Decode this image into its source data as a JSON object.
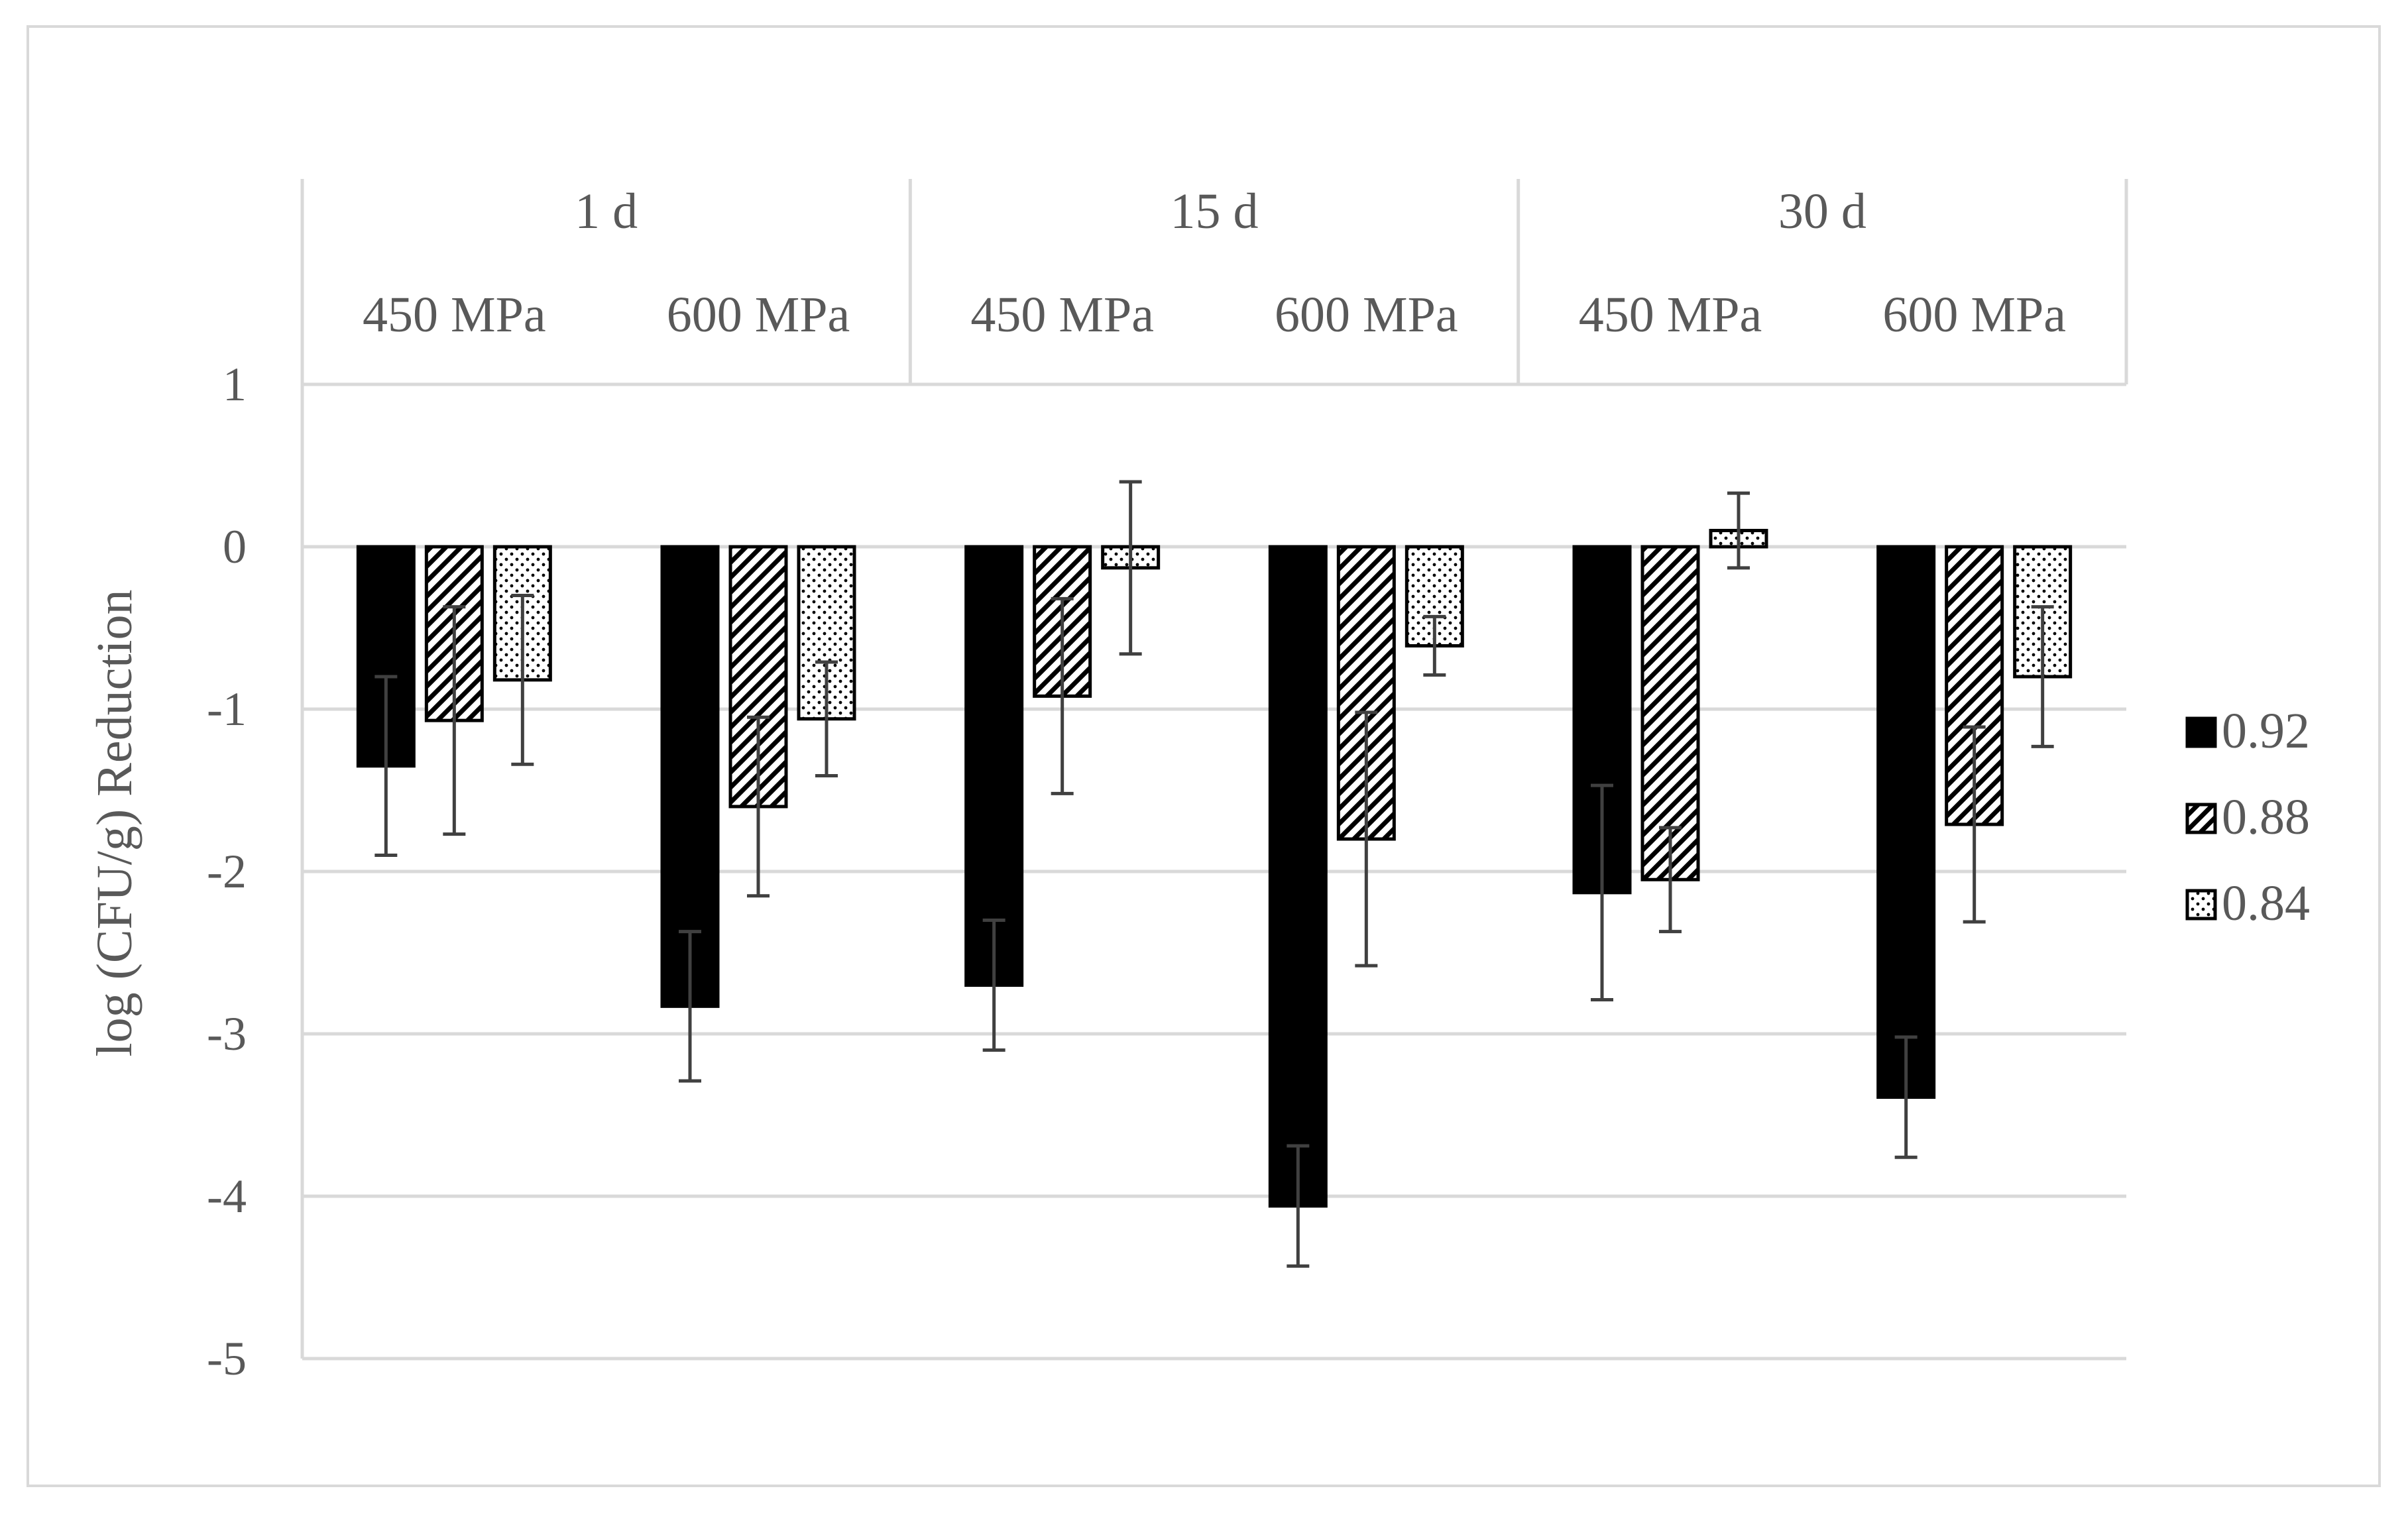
{
  "chart_data": {
    "type": "bar",
    "title": "",
    "ylabel": "log (CFU/g) Reduction",
    "xlabel": "",
    "ylim": [
      -5,
      1
    ],
    "yticks": [
      1,
      0,
      -1,
      -2,
      -3,
      -4,
      -5
    ],
    "ytick_labels": [
      "1",
      "0",
      "-1",
      "-2",
      "-3",
      "-4",
      "-5"
    ],
    "grid": true,
    "legend_position": "right",
    "groups": [
      {
        "label": "1 d",
        "subgroups": [
          "450 MPa",
          "600 MPa"
        ]
      },
      {
        "label": "15 d",
        "subgroups": [
          "450 MPa",
          "600 MPa"
        ]
      },
      {
        "label": "30 d",
        "subgroups": [
          "450 MPa",
          "600 MPa"
        ]
      }
    ],
    "categories": [
      "1 d 450 MPa",
      "1 d 600 MPa",
      "15 d 450 MPa",
      "15 d 600 MPa",
      "30 d 450 MPa",
      "30 d 600 MPa"
    ],
    "series": [
      {
        "name": "0.92",
        "fill": "solid",
        "values": [
          -1.35,
          -2.83,
          -2.7,
          -4.06,
          -2.13,
          -3.39
        ],
        "errors": [
          0.55,
          0.46,
          0.4,
          0.37,
          0.66,
          0.37
        ]
      },
      {
        "name": "0.88",
        "fill": "diagonal-hatch",
        "values": [
          -1.07,
          -1.6,
          -0.92,
          -1.8,
          -2.05,
          -1.71
        ],
        "errors": [
          0.7,
          0.55,
          0.6,
          0.78,
          0.32,
          0.6
        ]
      },
      {
        "name": "0.84",
        "fill": "dotted",
        "values": [
          -0.82,
          -1.06,
          -0.13,
          -0.61,
          0.1,
          -0.8
        ],
        "errors": [
          0.52,
          0.35,
          0.53,
          0.18,
          0.23,
          0.43
        ]
      }
    ],
    "colors": {
      "bar_dark": "#000000",
      "axis_text": "#595959",
      "grid": "#d9d9d9",
      "error_bar": "#404040"
    }
  }
}
